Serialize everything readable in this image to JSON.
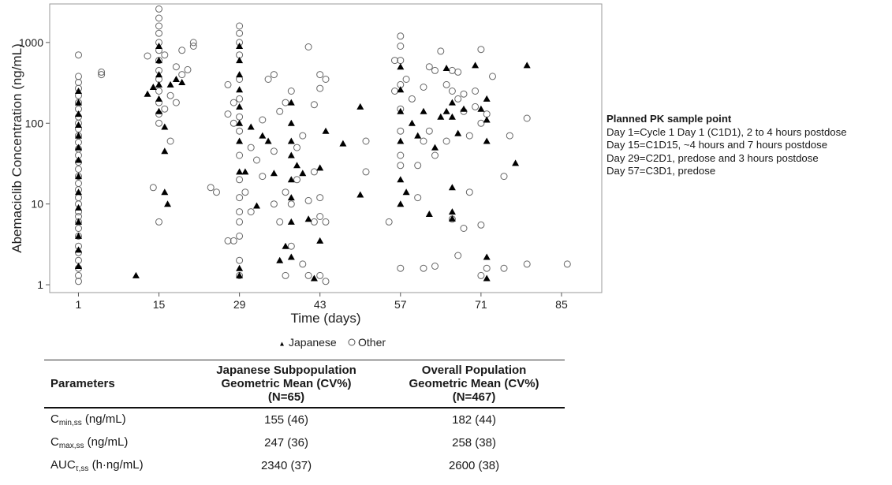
{
  "chart_data": {
    "type": "scatter",
    "title": "",
    "xlabel": "Time (days)",
    "ylabel": "Abemaciclib Concentration (ng/mL)",
    "xlim": [
      -4,
      92
    ],
    "ylim": [
      0.8,
      3000
    ],
    "y_scale": "log",
    "x_ticks": [
      1,
      15,
      29,
      43,
      57,
      71,
      85
    ],
    "y_ticks": [
      1,
      10,
      100,
      1000
    ],
    "y_tick_labels": [
      "1",
      "10",
      "100",
      "1000"
    ],
    "grid": false,
    "legend_position": "bottom",
    "series": [
      {
        "name": "Japanese",
        "marker": "filled-triangle",
        "color": "#000000",
        "points": [
          [
            1,
            1.7
          ],
          [
            1,
            2.7
          ],
          [
            1,
            4
          ],
          [
            1,
            6
          ],
          [
            1,
            9
          ],
          [
            1,
            14
          ],
          [
            1,
            22
          ],
          [
            1,
            35
          ],
          [
            1,
            50
          ],
          [
            1,
            70
          ],
          [
            1,
            95
          ],
          [
            1,
            130
          ],
          [
            1,
            180
          ],
          [
            1,
            250
          ],
          [
            11,
            1.3
          ],
          [
            13,
            230
          ],
          [
            14,
            280
          ],
          [
            15,
            140
          ],
          [
            15,
            200
          ],
          [
            15,
            300
          ],
          [
            15,
            400
          ],
          [
            15,
            600
          ],
          [
            15,
            900
          ],
          [
            16,
            14
          ],
          [
            16.5,
            10
          ],
          [
            16,
            45
          ],
          [
            16,
            90
          ],
          [
            17,
            300
          ],
          [
            18,
            350
          ],
          [
            19,
            320
          ],
          [
            29,
            1.3
          ],
          [
            29,
            1.6
          ],
          [
            29,
            25
          ],
          [
            29,
            60
          ],
          [
            29,
            100
          ],
          [
            29,
            160
          ],
          [
            29,
            260
          ],
          [
            29,
            400
          ],
          [
            29,
            600
          ],
          [
            29,
            900
          ],
          [
            30,
            25
          ],
          [
            31,
            90
          ],
          [
            32,
            9.5
          ],
          [
            33,
            70
          ],
          [
            34,
            60
          ],
          [
            35,
            24
          ],
          [
            36,
            2
          ],
          [
            37,
            3
          ],
          [
            38,
            2.2
          ],
          [
            38,
            6
          ],
          [
            38,
            12
          ],
          [
            38,
            20
          ],
          [
            38,
            40
          ],
          [
            38,
            60
          ],
          [
            38,
            100
          ],
          [
            38,
            180
          ],
          [
            39,
            30
          ],
          [
            40,
            24
          ],
          [
            41,
            6.5
          ],
          [
            42,
            1.2
          ],
          [
            43,
            3.5
          ],
          [
            43,
            28
          ],
          [
            44,
            80
          ],
          [
            47,
            56
          ],
          [
            50,
            13
          ],
          [
            50,
            160
          ],
          [
            57,
            10
          ],
          [
            57,
            20
          ],
          [
            57,
            60
          ],
          [
            57,
            140
          ],
          [
            57,
            260
          ],
          [
            57,
            500
          ],
          [
            58,
            14
          ],
          [
            59,
            100
          ],
          [
            60,
            70
          ],
          [
            61,
            140
          ],
          [
            62,
            7.5
          ],
          [
            63,
            50
          ],
          [
            64,
            120
          ],
          [
            65,
            140
          ],
          [
            65,
            480
          ],
          [
            66,
            6.6
          ],
          [
            66,
            8
          ],
          [
            66,
            16
          ],
          [
            66,
            120
          ],
          [
            66,
            180
          ],
          [
            67,
            75
          ],
          [
            68,
            150
          ],
          [
            70,
            520
          ],
          [
            71,
            150
          ],
          [
            72,
            200
          ],
          [
            72,
            110
          ],
          [
            72,
            60
          ],
          [
            72,
            2.2
          ],
          [
            72,
            1.2
          ],
          [
            77,
            32
          ],
          [
            79,
            520
          ]
        ]
      },
      {
        "name": "Other",
        "marker": "open-circle",
        "color": "#666666",
        "points": [
          [
            1,
            1.1
          ],
          [
            1,
            1.3
          ],
          [
            1,
            1.6
          ],
          [
            1,
            2
          ],
          [
            1,
            2.5
          ],
          [
            1,
            3
          ],
          [
            1,
            4
          ],
          [
            1,
            5
          ],
          [
            1,
            6
          ],
          [
            1,
            7
          ],
          [
            1,
            8
          ],
          [
            1,
            10
          ],
          [
            1,
            12
          ],
          [
            1,
            15
          ],
          [
            1,
            18
          ],
          [
            1,
            22
          ],
          [
            1,
            27
          ],
          [
            1,
            33
          ],
          [
            1,
            40
          ],
          [
            1,
            48
          ],
          [
            1,
            58
          ],
          [
            1,
            70
          ],
          [
            1,
            85
          ],
          [
            1,
            100
          ],
          [
            1,
            120
          ],
          [
            1,
            150
          ],
          [
            1,
            180
          ],
          [
            1,
            220
          ],
          [
            1,
            270
          ],
          [
            1,
            320
          ],
          [
            1,
            380
          ],
          [
            1,
            700
          ],
          [
            5,
            400
          ],
          [
            5,
            430
          ],
          [
            13,
            680
          ],
          [
            14,
            16
          ],
          [
            15,
            6
          ],
          [
            15,
            100
          ],
          [
            15,
            130
          ],
          [
            15,
            180
          ],
          [
            15,
            250
          ],
          [
            15,
            350
          ],
          [
            15,
            450
          ],
          [
            15,
            600
          ],
          [
            15,
            800
          ],
          [
            15,
            1000
          ],
          [
            15,
            1300
          ],
          [
            15,
            1600
          ],
          [
            15,
            2000
          ],
          [
            15,
            2600
          ],
          [
            16,
            150
          ],
          [
            16,
            700
          ],
          [
            17,
            60
          ],
          [
            17,
            220
          ],
          [
            18,
            180
          ],
          [
            18,
            500
          ],
          [
            19,
            400
          ],
          [
            19,
            800
          ],
          [
            20,
            460
          ],
          [
            21,
            900
          ],
          [
            21,
            1000
          ],
          [
            24,
            16
          ],
          [
            25,
            14
          ],
          [
            27,
            3.5
          ],
          [
            27,
            130
          ],
          [
            27,
            300
          ],
          [
            28,
            3.5
          ],
          [
            28,
            100
          ],
          [
            28,
            180
          ],
          [
            29,
            1.3
          ],
          [
            29,
            2
          ],
          [
            29,
            4
          ],
          [
            29,
            6
          ],
          [
            29,
            8
          ],
          [
            29,
            12
          ],
          [
            29,
            20
          ],
          [
            29,
            40
          ],
          [
            29,
            80
          ],
          [
            29,
            120
          ],
          [
            29,
            200
          ],
          [
            29,
            350
          ],
          [
            29,
            700
          ],
          [
            29,
            1000
          ],
          [
            29,
            1300
          ],
          [
            29,
            1600
          ],
          [
            30,
            14
          ],
          [
            31,
            8
          ],
          [
            31,
            50
          ],
          [
            32,
            35
          ],
          [
            33,
            22
          ],
          [
            33,
            110
          ],
          [
            34,
            350
          ],
          [
            35,
            10
          ],
          [
            35,
            45
          ],
          [
            35,
            400
          ],
          [
            36,
            6
          ],
          [
            36,
            140
          ],
          [
            37,
            1.3
          ],
          [
            37,
            14
          ],
          [
            37,
            180
          ],
          [
            38,
            3
          ],
          [
            38,
            10
          ],
          [
            38,
            250
          ],
          [
            39,
            20
          ],
          [
            39,
            50
          ],
          [
            40,
            1.8
          ],
          [
            40,
            70
          ],
          [
            41,
            1.3
          ],
          [
            41,
            11
          ],
          [
            41,
            880
          ],
          [
            42,
            6
          ],
          [
            42,
            25
          ],
          [
            42,
            170
          ],
          [
            43,
            1.3
          ],
          [
            43,
            7
          ],
          [
            43,
            12
          ],
          [
            43,
            270
          ],
          [
            43,
            400
          ],
          [
            44,
            1.1
          ],
          [
            44,
            6
          ],
          [
            44,
            350
          ],
          [
            51,
            60
          ],
          [
            51,
            25
          ],
          [
            55,
            6
          ],
          [
            56,
            250
          ],
          [
            56,
            600
          ],
          [
            57,
            1.6
          ],
          [
            57,
            30
          ],
          [
            57,
            40
          ],
          [
            57,
            80
          ],
          [
            57,
            150
          ],
          [
            57,
            300
          ],
          [
            57,
            600
          ],
          [
            57,
            900
          ],
          [
            57,
            1200
          ],
          [
            58,
            350
          ],
          [
            59,
            200
          ],
          [
            60,
            12
          ],
          [
            60,
            30
          ],
          [
            61,
            1.6
          ],
          [
            61,
            60
          ],
          [
            61,
            280
          ],
          [
            62,
            80
          ],
          [
            62,
            500
          ],
          [
            63,
            1.7
          ],
          [
            63,
            40
          ],
          [
            63,
            450
          ],
          [
            64,
            780
          ],
          [
            65,
            60
          ],
          [
            65,
            300
          ],
          [
            66,
            6.5
          ],
          [
            66,
            250
          ],
          [
            66,
            450
          ],
          [
            67,
            2.3
          ],
          [
            67,
            200
          ],
          [
            67,
            430
          ],
          [
            68,
            5
          ],
          [
            68,
            140
          ],
          [
            68,
            230
          ],
          [
            69,
            70
          ],
          [
            69,
            14
          ],
          [
            70,
            160
          ],
          [
            70,
            250
          ],
          [
            71,
            5.5
          ],
          [
            71,
            100
          ],
          [
            71,
            820
          ],
          [
            71,
            1.3
          ],
          [
            72,
            130
          ],
          [
            72,
            1.6
          ],
          [
            73,
            380
          ],
          [
            75,
            1.6
          ],
          [
            75,
            22
          ],
          [
            76,
            70
          ],
          [
            79,
            115
          ],
          [
            79,
            1.8
          ],
          [
            86,
            1.8
          ]
        ]
      }
    ]
  },
  "note": {
    "title": "Planned PK sample point",
    "lines": [
      "Day 1=Cycle 1 Day 1 (C1D1), 2 to 4 hours postdose",
      "Day 15=C1D15, ~4 hours and 7 hours postdose",
      "Day 29=C2D1, predose and 3 hours postdose",
      "Day 57=C3D1, predose"
    ]
  },
  "table": {
    "headers": {
      "col0": "Parameters",
      "col1": [
        "Japanese Subpopulation",
        "Geometric Mean (CV%)",
        "(N=65)"
      ],
      "col2": [
        "Overall Population",
        "Geometric Mean (CV%)",
        "(N=467)"
      ]
    },
    "rows": [
      {
        "param": "C",
        "sub": "min,ss",
        "unit": " (ng/mL)",
        "japanese": "155 (46)",
        "overall": "182 (44)"
      },
      {
        "param": "C",
        "sub": "max,ss",
        "unit": " (ng/mL)",
        "japanese": "247 (36)",
        "overall": "258 (38)"
      },
      {
        "param": "AUC",
        "sub": "τ,ss",
        "unit": " (h·ng/mL)",
        "japanese": "2340 (37)",
        "overall": "2600 (38)"
      }
    ]
  }
}
